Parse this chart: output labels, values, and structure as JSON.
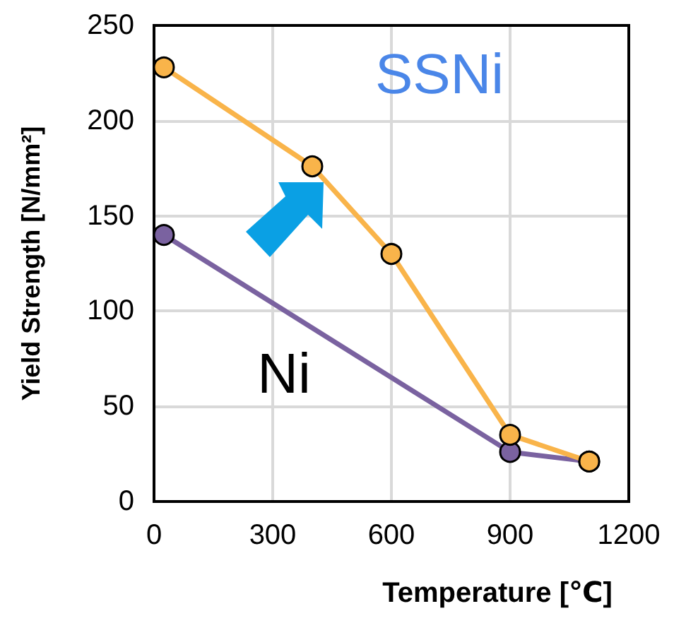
{
  "chart_data": {
    "type": "line",
    "xlabel": "Temperature [℃]",
    "ylabel": "Yield Strength [N/mm²]",
    "xlim": [
      0,
      1200
    ],
    "xticks": [
      0,
      300,
      600,
      900,
      1200
    ],
    "ylim": [
      0,
      250
    ],
    "yticks": [
      0,
      50,
      100,
      150,
      200,
      250
    ],
    "grid": true,
    "marker": "circle",
    "legend": false,
    "series": [
      {
        "name": "SSNi",
        "color": "#f9b44a",
        "x": [
          25,
          400,
          600,
          900,
          1100
        ],
        "values": [
          228,
          176,
          130,
          35,
          21
        ]
      },
      {
        "name": "Ni",
        "color": "#7a62a0",
        "x": [
          25,
          900,
          1100
        ],
        "values": [
          140,
          26,
          21
        ]
      }
    ]
  }
}
